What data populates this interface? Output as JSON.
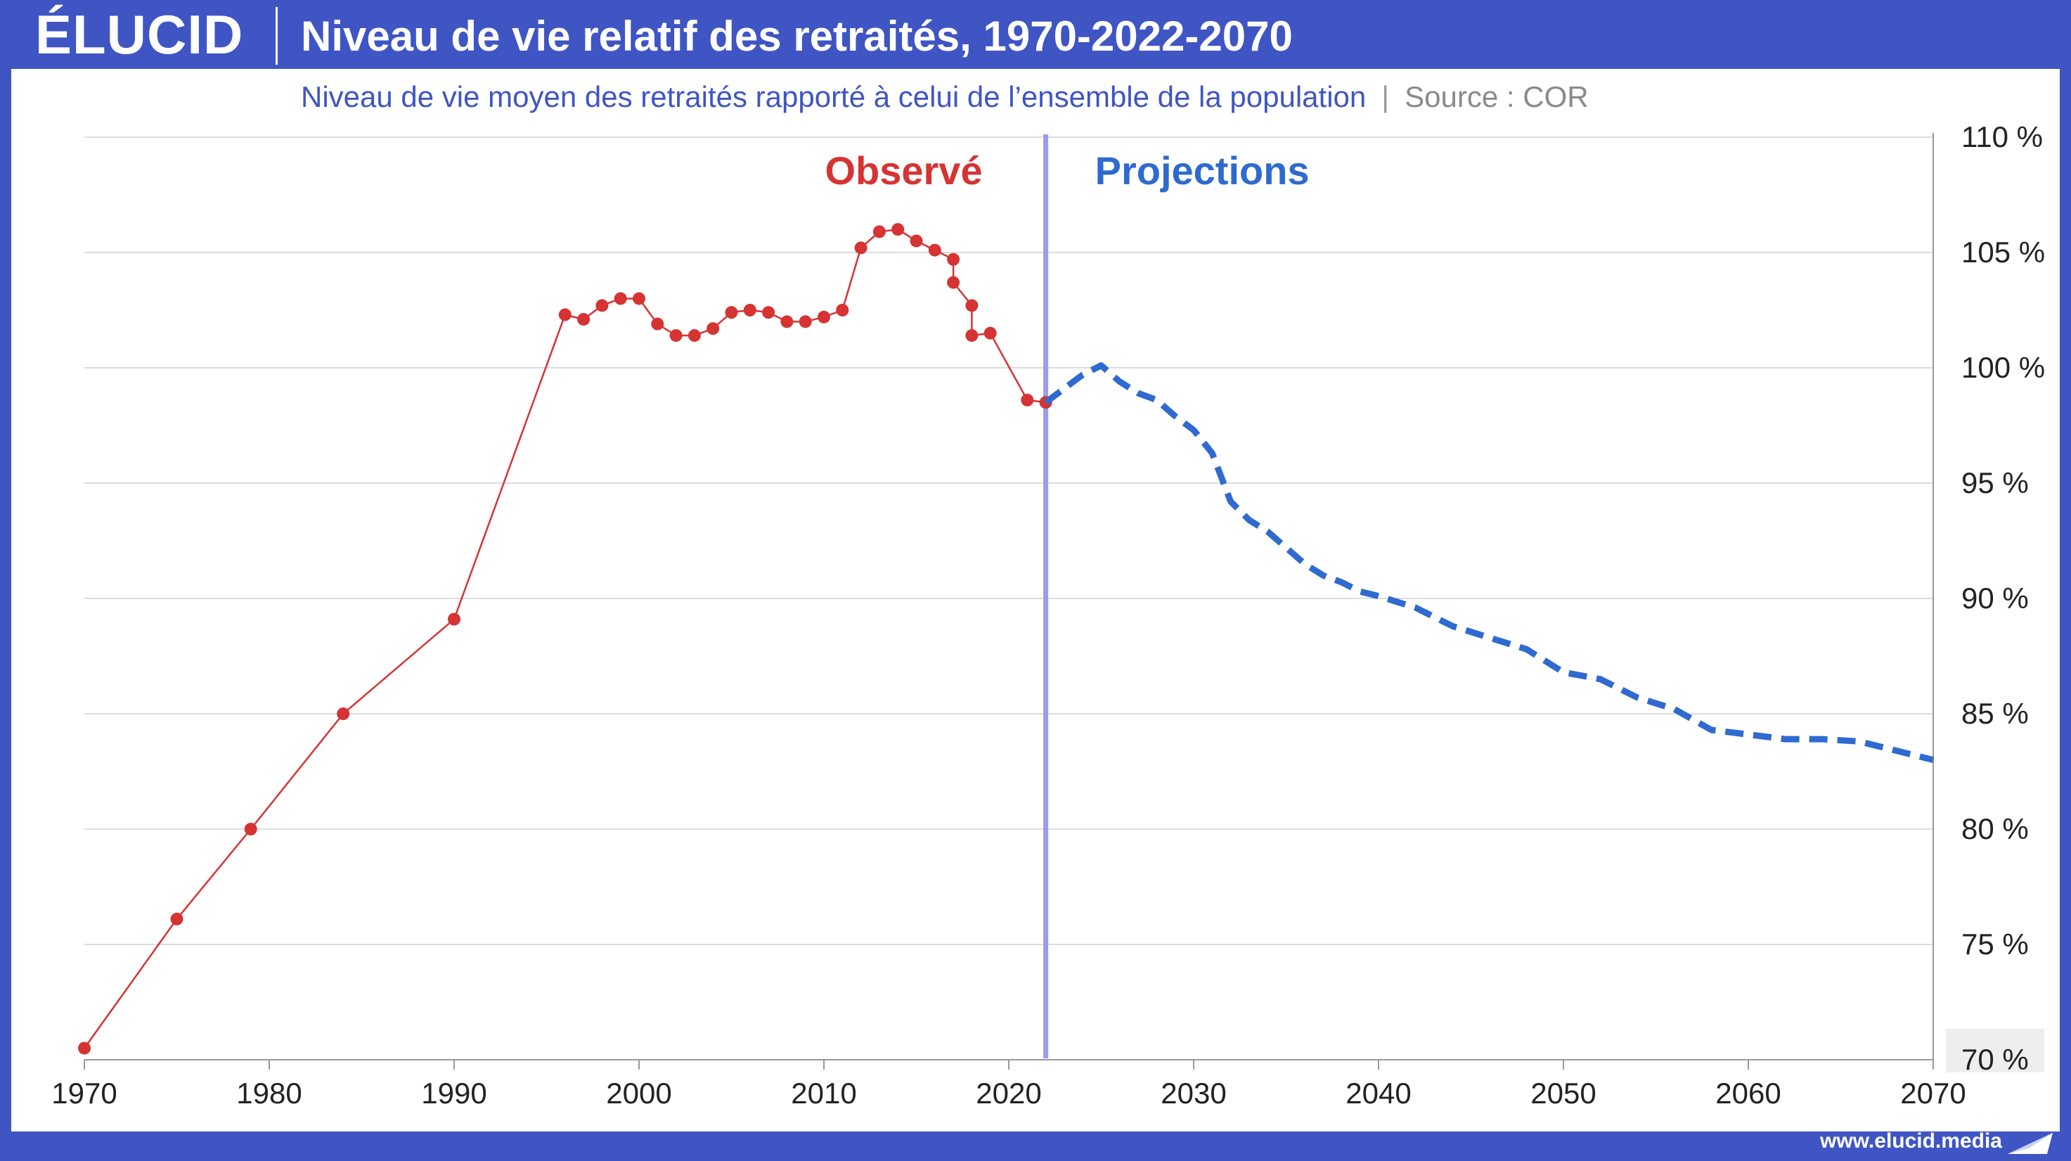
{
  "brand": {
    "logo": "ÉLUCID",
    "url": "www.elucid.media"
  },
  "header": {
    "title": "Niveau de vie relatif des retraités, 1970-2022-2070",
    "subtitle": "Niveau de vie moyen des retraités rapporté à celui de l’ensemble de la population",
    "separator": "|",
    "source": "Source : COR"
  },
  "colors": {
    "frame": "#3f55c4",
    "observed": "#d63333",
    "projection": "#2f6ad0",
    "divider": "#9a9cf0",
    "grid": "#dcdcdc"
  },
  "chart_data": {
    "type": "line",
    "title": "Niveau de vie relatif des retraités, 1970-2022-2070",
    "xlim": [
      1970,
      2070
    ],
    "ylim": [
      70,
      110
    ],
    "x_ticks": [
      "1970",
      "1980",
      "1990",
      "2000",
      "2010",
      "2020",
      "2030",
      "2040",
      "2050",
      "2060",
      "2070"
    ],
    "y_ticks": [
      "70 %",
      "75 %",
      "80 %",
      "85 %",
      "90 %",
      "95 %",
      "100 %",
      "105 %",
      "110 %"
    ],
    "y_tick_values": [
      70,
      75,
      80,
      85,
      90,
      95,
      100,
      105,
      110
    ],
    "y_axis_side": "right",
    "grid": true,
    "divider_x": 2022,
    "annotations": {
      "observed": "Observé",
      "projections": "Projections"
    },
    "series": [
      {
        "name": "Observé",
        "style": "solid-with-markers",
        "x": [
          1970,
          1975,
          1979,
          1984,
          1990,
          1996,
          1997,
          1998,
          1999,
          2000,
          2001,
          2002,
          2003,
          2004,
          2005,
          2006,
          2007,
          2008,
          2009,
          2010,
          2011,
          2012,
          2013,
          2014,
          2015,
          2016,
          2017,
          2017,
          2018,
          2018,
          2019,
          2021,
          2022
        ],
        "y": [
          70.5,
          76.1,
          80.0,
          85.0,
          89.1,
          102.3,
          102.1,
          102.7,
          103.0,
          103.0,
          101.9,
          101.4,
          101.4,
          101.7,
          102.4,
          102.5,
          102.4,
          102.0,
          102.0,
          102.2,
          102.5,
          105.2,
          105.9,
          106.0,
          105.5,
          105.1,
          104.7,
          103.7,
          102.7,
          101.4,
          101.5,
          98.6,
          98.5
        ]
      },
      {
        "name": "Projections",
        "style": "dashed",
        "x": [
          2022,
          2023,
          2024,
          2025,
          2026,
          2027,
          2028,
          2029,
          2030,
          2031,
          2032,
          2033,
          2034,
          2035,
          2036,
          2037,
          2038,
          2039,
          2040,
          2042,
          2044,
          2046,
          2048,
          2050,
          2052,
          2054,
          2056,
          2058,
          2060,
          2062,
          2064,
          2066,
          2068,
          2070
        ],
        "y": [
          98.5,
          99.1,
          99.7,
          100.1,
          99.4,
          98.9,
          98.6,
          97.9,
          97.3,
          96.3,
          94.2,
          93.4,
          92.9,
          92.2,
          91.5,
          91.0,
          90.7,
          90.3,
          90.1,
          89.6,
          88.8,
          88.3,
          87.8,
          86.8,
          86.5,
          85.7,
          85.2,
          84.3,
          84.1,
          83.9,
          83.9,
          83.8,
          83.4,
          83.0
        ]
      }
    ]
  }
}
